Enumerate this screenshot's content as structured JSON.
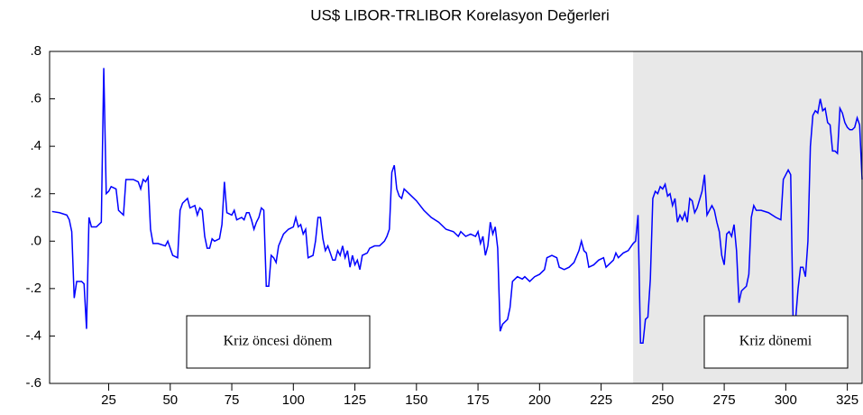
{
  "chart_data": {
    "type": "line",
    "title": "US$ LIBOR-TRLIBOR Korelasyon  Değerleri",
    "annotations": [
      "Kriz öncesi  dönem",
      "Kriz dönemi"
    ],
    "shaded_region": [
      238,
      331
    ],
    "xlim": [
      1,
      331
    ],
    "xticks": [
      25,
      50,
      75,
      100,
      125,
      150,
      175,
      200,
      225,
      250,
      275,
      300,
      325
    ],
    "ylim": [
      -0.6,
      0.8
    ],
    "yticks": [
      {
        "value": -0.6,
        "label": "-.6"
      },
      {
        "value": -0.4,
        "label": "-.4"
      },
      {
        "value": -0.2,
        "label": "-.2"
      },
      {
        "value": 0,
        "label": ".0"
      },
      {
        "value": 0.2,
        "label": ".2"
      },
      {
        "value": 0.4,
        "label": ".4"
      },
      {
        "value": 0.6,
        "label": ".6"
      },
      {
        "value": 0.8,
        "label": ".8"
      }
    ],
    "series": [
      {
        "color": "#0000ff",
        "x": [
          2,
          5,
          8,
          9,
          10,
          11,
          12,
          14,
          15,
          16,
          17,
          18,
          20,
          22,
          23,
          24,
          25,
          26,
          28,
          29,
          31,
          32,
          35,
          37,
          38,
          39,
          40,
          41,
          42,
          43,
          45,
          48,
          49,
          50,
          51,
          53,
          54,
          55,
          57,
          58,
          60,
          61,
          62,
          63,
          64,
          65,
          66,
          67,
          68,
          70,
          71,
          72,
          73,
          75,
          76,
          77,
          79,
          80,
          81,
          82,
          83,
          84,
          85,
          86,
          87,
          88,
          89,
          90,
          91,
          92,
          93,
          94,
          96,
          98,
          100,
          101,
          102,
          103,
          104,
          105,
          106,
          108,
          109,
          110,
          111,
          112,
          113,
          114,
          115,
          116,
          117,
          118,
          119,
          120,
          121,
          122,
          123,
          124,
          125,
          126,
          127,
          128,
          130,
          131,
          133,
          135,
          137,
          138,
          139,
          140,
          141,
          142,
          143,
          144,
          145,
          147,
          150,
          153,
          156,
          159,
          162,
          165,
          167,
          168,
          170,
          172,
          174,
          175,
          176,
          177,
          178,
          179,
          180,
          181,
          182,
          183,
          184,
          185,
          187,
          188,
          189,
          190,
          191,
          193,
          194,
          196,
          198,
          200,
          202,
          203,
          205,
          207,
          208,
          210,
          212,
          214,
          216,
          217,
          218,
          219,
          220,
          222,
          224,
          226,
          227,
          228,
          230,
          231,
          232,
          234,
          236,
          238,
          239,
          240,
          241,
          242,
          243,
          244,
          245,
          246,
          247,
          248,
          249,
          250,
          251,
          252,
          253,
          254,
          255,
          256,
          257,
          258,
          259,
          260,
          261,
          262,
          263,
          264,
          266,
          267,
          268,
          269,
          270,
          271,
          272,
          273,
          274,
          275,
          276,
          277,
          278,
          279,
          280,
          281,
          282,
          283,
          284,
          285,
          286,
          287,
          288,
          290,
          293,
          296,
          298,
          299,
          300,
          301,
          302,
          303,
          304,
          305,
          306,
          307,
          308,
          309,
          310,
          311,
          312,
          313,
          314,
          315,
          316,
          317,
          318,
          319,
          320,
          321,
          322,
          323,
          324,
          325,
          326,
          327,
          328,
          329,
          330,
          331
        ],
        "values": [
          0.125,
          0.12,
          0.11,
          0.09,
          0.04,
          -0.24,
          -0.17,
          -0.17,
          -0.18,
          -0.37,
          0.1,
          0.06,
          0.06,
          0.08,
          0.73,
          0.2,
          0.21,
          0.23,
          0.22,
          0.13,
          0.11,
          0.26,
          0.26,
          0.25,
          0.22,
          0.26,
          0.25,
          0.27,
          0.05,
          -0.01,
          -0.01,
          -0.02,
          0.0,
          -0.03,
          -0.06,
          -0.07,
          0.13,
          0.16,
          0.18,
          0.14,
          0.15,
          0.11,
          0.14,
          0.13,
          0.02,
          -0.03,
          -0.03,
          0.01,
          0.0,
          0.01,
          0.07,
          0.25,
          0.12,
          0.11,
          0.13,
          0.09,
          0.1,
          0.09,
          0.12,
          0.12,
          0.09,
          0.05,
          0.08,
          0.1,
          0.14,
          0.13,
          -0.19,
          -0.19,
          -0.06,
          -0.07,
          -0.09,
          -0.02,
          0.03,
          0.05,
          0.06,
          0.1,
          0.06,
          0.07,
          0.03,
          0.05,
          -0.07,
          -0.06,
          0.0,
          0.1,
          0.1,
          0.01,
          -0.04,
          -0.02,
          -0.05,
          -0.08,
          -0.08,
          -0.04,
          -0.06,
          -0.02,
          -0.07,
          -0.04,
          -0.11,
          -0.06,
          -0.1,
          -0.08,
          -0.12,
          -0.06,
          -0.05,
          -0.03,
          -0.02,
          -0.02,
          0.0,
          0.02,
          0.05,
          0.29,
          0.32,
          0.22,
          0.19,
          0.18,
          0.22,
          0.2,
          0.17,
          0.13,
          0.1,
          0.08,
          0.05,
          0.04,
          0.02,
          0.04,
          0.02,
          0.03,
          0.02,
          0.04,
          -0.01,
          0.02,
          -0.06,
          -0.02,
          0.08,
          0.03,
          0.06,
          -0.03,
          -0.38,
          -0.35,
          -0.33,
          -0.28,
          -0.17,
          -0.16,
          -0.15,
          -0.16,
          -0.15,
          -0.17,
          -0.15,
          -0.14,
          -0.12,
          -0.07,
          -0.06,
          -0.07,
          -0.11,
          -0.12,
          -0.11,
          -0.09,
          -0.04,
          0.0,
          -0.04,
          -0.05,
          -0.11,
          -0.1,
          -0.08,
          -0.07,
          -0.11,
          -0.1,
          -0.08,
          -0.05,
          -0.07,
          -0.05,
          -0.04,
          -0.01,
          0.0,
          0.11,
          -0.43,
          -0.43,
          -0.33,
          -0.32,
          -0.16,
          0.18,
          0.21,
          0.2,
          0.23,
          0.22,
          0.24,
          0.19,
          0.2,
          0.15,
          0.18,
          0.08,
          0.11,
          0.09,
          0.12,
          0.08,
          0.18,
          0.17,
          0.12,
          0.14,
          0.21,
          0.28,
          0.11,
          0.13,
          0.15,
          0.13,
          0.08,
          0.04,
          -0.06,
          -0.1,
          0.03,
          0.04,
          0.02,
          0.07,
          -0.04,
          -0.26,
          -0.21,
          -0.2,
          -0.19,
          -0.14,
          0.1,
          0.15,
          0.13,
          0.13,
          0.12,
          0.1,
          0.09,
          0.26,
          0.28,
          0.3,
          0.28,
          -0.35,
          -0.33,
          -0.2,
          -0.11,
          -0.11,
          -0.15,
          0.0,
          0.4,
          0.53,
          0.55,
          0.54,
          0.6,
          0.55,
          0.56,
          0.5,
          0.49,
          0.38,
          0.38,
          0.37,
          0.56,
          0.54,
          0.5,
          0.48,
          0.47,
          0.47,
          0.48,
          0.52,
          0.49,
          0.26
        ]
      }
    ]
  }
}
